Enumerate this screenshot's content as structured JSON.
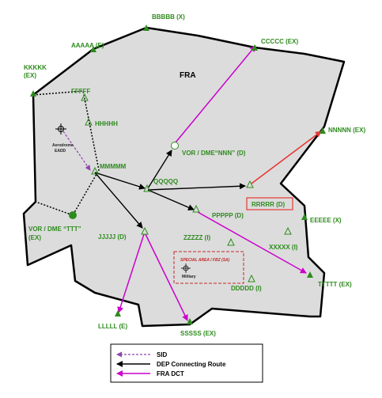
{
  "region": {
    "label": "FRA"
  },
  "waypoints": {
    "bbbbb": "BBBBB (X)",
    "aaaaa": "AAAAA (E)",
    "ccccc": "CCCCC (EX)",
    "kkkkk_1": "KKKKK",
    "kkkkk_2": "(EX)",
    "fffff": "FFFFF",
    "hhhhh": "HHHHH",
    "mmmmm": "MMMMM",
    "qqqqq": "QQQQQ",
    "nnnnn": "NNNNN (EX)",
    "rrrrr": "RRRRR (D)",
    "ppppp": "PPPPP (D)",
    "eeeee": "EEEEE (X)",
    "zzzzz": "ZZZZZ (I)",
    "xxxxx": "XXXXX (I)",
    "jjjjj": "JJJJJ (D)",
    "ddddd": "DDDDD (I)",
    "ttttt": "TTTTT (EX)",
    "lllll": "LLLLL (E)",
    "sssss": "SSSSS (EX)"
  },
  "navaids": {
    "vor_nnn": "VOR / DME“NNN” (D)",
    "vor_ttt_1": "VOR / DME “TTT”",
    "vor_ttt_2": "(EX)"
  },
  "aerodrome": {
    "name": "Aerodrome",
    "code": "EADD"
  },
  "special_area": {
    "title": "SPECIAL AREA / FBZ (SA)",
    "subtitle": "Military"
  },
  "legend": {
    "items": [
      "SID",
      "DEP Connecting Route",
      "FRA DCT"
    ]
  },
  "colors": {
    "fill": "#dcdcdc",
    "green": "#2e8b1e",
    "sid": "#8e44ad",
    "dep": "#000000",
    "fra_dct": "#cc00cc",
    "highlight": "#e53935"
  },
  "icons": {
    "waypoint_filled": "triangle-filled",
    "waypoint_open": "triangle-open",
    "vor": "circle",
    "aerodrome": "aerodrome-symbol"
  }
}
